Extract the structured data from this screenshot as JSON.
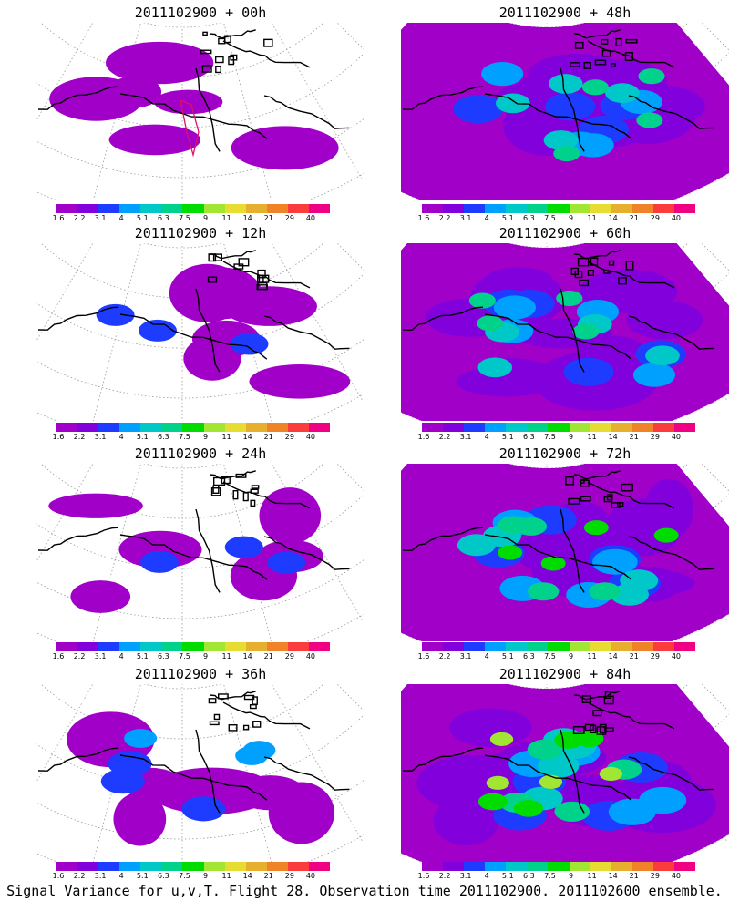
{
  "panels": [
    {
      "title": "2011102900 + 00h",
      "intensity": 0.35
    },
    {
      "title": "2011102900 + 48h",
      "intensity": 1.3
    },
    {
      "title": "2011102900 + 12h",
      "intensity": 0.55
    },
    {
      "title": "2011102900 + 60h",
      "intensity": 1.5
    },
    {
      "title": "2011102900 + 24h",
      "intensity": 0.7
    },
    {
      "title": "2011102900 + 72h",
      "intensity": 1.8
    },
    {
      "title": "2011102900 + 36h",
      "intensity": 0.85
    },
    {
      "title": "2011102900 + 84h",
      "intensity": 2.0
    }
  ],
  "legend": {
    "labels": [
      "1.6",
      "2.2",
      "3.1",
      "4",
      "5.1",
      "6.3",
      "7.5",
      "9",
      "11",
      "14",
      "21",
      "29",
      "40"
    ],
    "colors": [
      "#a100c8",
      "#8200dc",
      "#1e3cff",
      "#00a0ff",
      "#00c8c8",
      "#00d28c",
      "#00dc00",
      "#a0e632",
      "#e6dc32",
      "#e6af2d",
      "#f08228",
      "#fa3c3c",
      "#f00082"
    ]
  },
  "caption": "Signal Variance for u,v,T. Flight 28. Observation time 2011102900. 2011102600 ensemble."
}
